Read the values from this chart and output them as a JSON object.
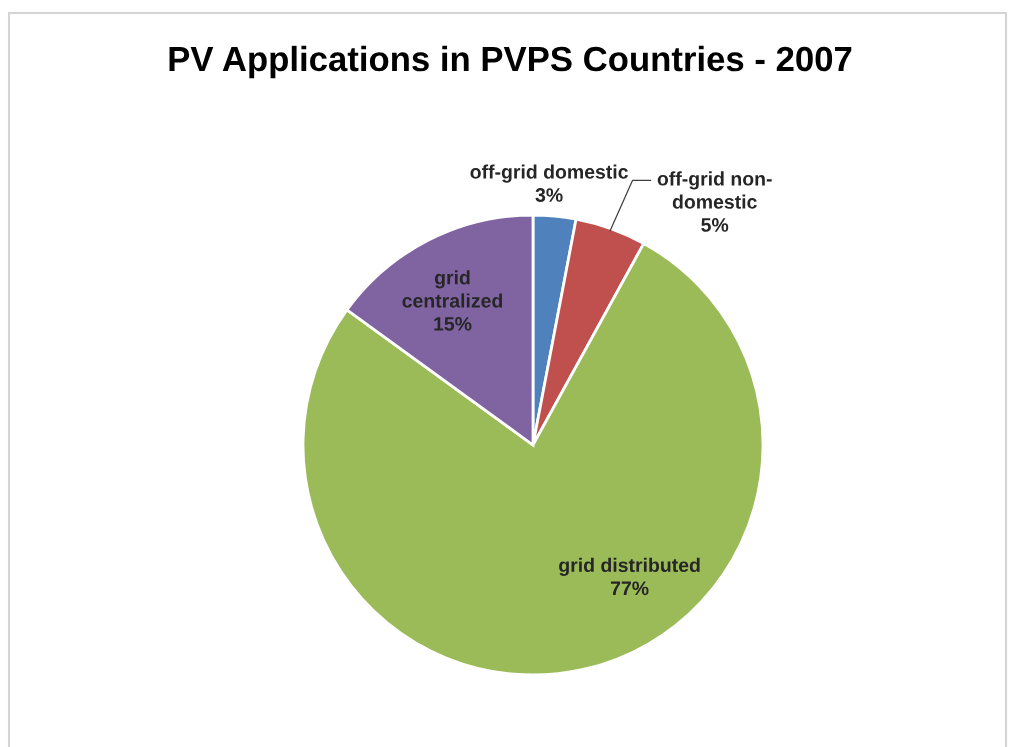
{
  "chart_data": {
    "type": "pie",
    "title": "PV Applications in PVPS Countries - 2007",
    "categories": [
      "off-grid domestic",
      "off-grid non-\ndomestic",
      "grid distributed",
      "grid\ncentralized"
    ],
    "values": [
      3,
      5,
      77,
      15
    ],
    "colors": [
      "#4f81bd",
      "#c0504d",
      "#9bbb59",
      "#8064a2"
    ],
    "value_labels": [
      "3%",
      "5%",
      "77%",
      "15%"
    ]
  }
}
